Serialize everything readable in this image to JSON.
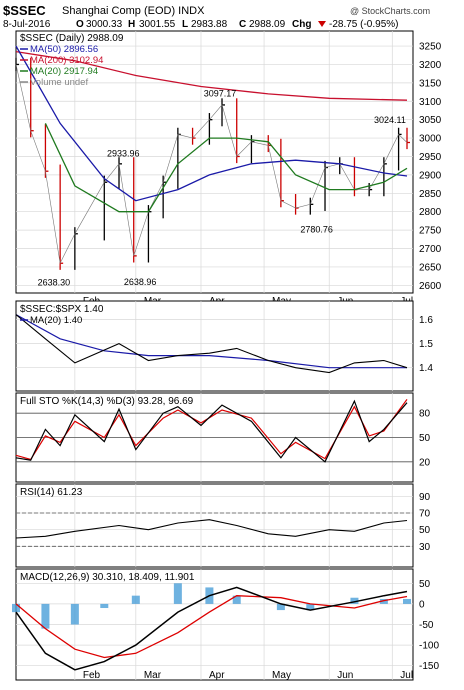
{
  "header": {
    "symbol": "$SSEC",
    "name": "Shanghai Comp (EOD) INDX",
    "watermark": "@ StockCharts.com",
    "date": "8-Jul-2016",
    "open_label": "O",
    "open": "3000.33",
    "high_label": "H",
    "high": "3001.55",
    "low_label": "L",
    "low": "2983.88",
    "close_label": "C",
    "close": "2988.09",
    "chg_label": "Chg",
    "chg": "-28.75 (-0.95%)",
    "chg_icon": "down-triangle-icon"
  },
  "colors": {
    "up_bar": "#000000",
    "down_bar": "#cc0000",
    "ma50": "#1a1aa8",
    "ma200": "#c8102e",
    "ma20": "#1f7a1f",
    "sto_k": "#000000",
    "sto_d": "#dd0000",
    "macd_line": "#000000",
    "signal_line": "#dd0000",
    "histogram": "#4a9fd8",
    "ratio_line": "#000000",
    "ratio_ma": "#1a1aa8",
    "grid": "#d8d8d8"
  },
  "chart_data": [
    {
      "type": "line",
      "title": "$SSEC (Daily) 2988.09",
      "legend": [
        {
          "name": "MA(50) 2896.56",
          "color": "#1a1aa8"
        },
        {
          "name": "MA(200) 3102.94",
          "color": "#c8102e"
        },
        {
          "name": "MA(20) 2917.94",
          "color": "#1f7a1f"
        },
        {
          "name": "Volume undef",
          "color": "#888888"
        }
      ],
      "legend_placement": "top-left",
      "x_ticks": [
        "Feb",
        "Mar",
        "Apr",
        "May",
        "Jun",
        "Jul"
      ],
      "y_ticks": [
        2600,
        2650,
        2700,
        2750,
        2800,
        2850,
        2900,
        2950,
        3000,
        3050,
        3100,
        3150,
        3200,
        3250
      ],
      "ylim": [
        2590,
        3280
      ],
      "annotations": [
        "2638.30",
        "2933.96",
        "2638.96",
        "3097.17",
        "2780.76",
        "3024.11"
      ],
      "grid": true,
      "series": [
        {
          "name": "price",
          "x": [
            "Jan 4",
            "Jan 11",
            "Jan 18",
            "Jan 25",
            "Feb 1",
            "Feb 15",
            "Feb 22",
            "Feb 29",
            "Mar 7",
            "Mar 14",
            "Mar 21",
            "Mar 28",
            "Apr 5",
            "Apr 11",
            "Apr 18",
            "Apr 25",
            "May 3",
            "May 9",
            "May 16",
            "May 23",
            "May 30",
            "Jun 6",
            "Jun 13",
            "Jun 20",
            "Jun 27",
            "Jul 4",
            "Jul 8"
          ],
          "values": [
            3200,
            3020,
            2910,
            2660,
            2740,
            2880,
            2930,
            2680,
            2800,
            2880,
            3010,
            3000,
            3050,
            3090,
            2950,
            2990,
            2980,
            2830,
            2810,
            2820,
            2920,
            2930,
            2860,
            2860,
            2930,
            3010,
            2988
          ]
        },
        {
          "name": "MA(200)",
          "x": [
            "Jan 4",
            "Feb 1",
            "Mar 1",
            "Apr 1",
            "May 3",
            "Jun 1",
            "Jul 8"
          ],
          "values": [
            3235,
            3210,
            3170,
            3140,
            3120,
            3108,
            3103
          ]
        },
        {
          "name": "MA(50)",
          "x": [
            "Jan 4",
            "Jan 25",
            "Feb 15",
            "Mar 1",
            "Mar 21",
            "Apr 5",
            "Apr 25",
            "May 16",
            "Jun 6",
            "Jun 27",
            "Jul 8"
          ],
          "values": [
            3250,
            3040,
            2890,
            2830,
            2860,
            2900,
            2930,
            2940,
            2930,
            2905,
            2897
          ]
        },
        {
          "name": "MA(20)",
          "x": [
            "Jan 18",
            "Feb 1",
            "Feb 22",
            "Mar 7",
            "Mar 21",
            "Apr 5",
            "Apr 18",
            "May 3",
            "May 16",
            "Jun 1",
            "Jun 13",
            "Jun 27",
            "Jul 8"
          ],
          "values": [
            3040,
            2870,
            2800,
            2800,
            2930,
            3000,
            3000,
            2990,
            2900,
            2860,
            2860,
            2880,
            2918
          ]
        }
      ]
    },
    {
      "type": "line",
      "title": "$SSEC:$SPX 1.40",
      "legend": [
        {
          "name": "MA(20) 1.40",
          "color": "#1a1aa8"
        }
      ],
      "y_ticks": [
        1.4,
        1.5,
        1.6
      ],
      "ylim": [
        1.32,
        1.66
      ],
      "series": [
        {
          "name": "ratio",
          "x": [
            "Jan 4",
            "Jan 18",
            "Feb 1",
            "Feb 22",
            "Mar 7",
            "Mar 21",
            "Apr 5",
            "Apr 18",
            "May 3",
            "May 16",
            "Jun 1",
            "Jun 13",
            "Jun 27",
            "Jul 8"
          ],
          "values": [
            1.62,
            1.52,
            1.42,
            1.5,
            1.43,
            1.45,
            1.46,
            1.48,
            1.43,
            1.4,
            1.38,
            1.42,
            1.43,
            1.4
          ]
        },
        {
          "name": "MA(20)",
          "x": [
            "Jan 4",
            "Jan 25",
            "Feb 15",
            "Mar 7",
            "Apr 5",
            "May 3",
            "Jun 1",
            "Jul 8"
          ],
          "values": [
            1.62,
            1.52,
            1.47,
            1.45,
            1.45,
            1.43,
            1.4,
            1.4
          ]
        }
      ]
    },
    {
      "type": "line",
      "title": "Full STO %K(14,3) %D(3) 93.28, 96.69",
      "y_ticks": [
        20,
        50,
        80
      ],
      "ylim": [
        0,
        100
      ],
      "reference_lines": [
        20,
        50,
        80
      ],
      "series": [
        {
          "name": "%K",
          "x": [
            "Jan 4",
            "Jan 11",
            "Jan 18",
            "Jan 25",
            "Feb 1",
            "Feb 15",
            "Feb 22",
            "Mar 1",
            "Mar 14",
            "Mar 21",
            "Apr 1",
            "Apr 11",
            "Apr 25",
            "May 9",
            "May 16",
            "May 30",
            "Jun 13",
            "Jun 20",
            "Jun 27",
            "Jul 8"
          ],
          "values": [
            25,
            22,
            60,
            40,
            78,
            45,
            85,
            35,
            80,
            88,
            65,
            90,
            70,
            25,
            50,
            20,
            95,
            45,
            60,
            93
          ]
        },
        {
          "name": "%D",
          "x": [
            "Jan 4",
            "Jan 11",
            "Jan 18",
            "Jan 25",
            "Feb 1",
            "Feb 15",
            "Feb 22",
            "Mar 1",
            "Mar 14",
            "Mar 21",
            "Apr 1",
            "Apr 11",
            "Apr 25",
            "May 9",
            "May 16",
            "May 30",
            "Jun 13",
            "Jun 20",
            "Jun 27",
            "Jul 8"
          ],
          "values": [
            28,
            23,
            52,
            44,
            70,
            50,
            78,
            40,
            74,
            84,
            68,
            84,
            74,
            30,
            44,
            24,
            88,
            52,
            58,
            97
          ]
        }
      ]
    },
    {
      "type": "line",
      "title": "RSI(14) 61.23",
      "y_ticks": [
        30,
        50,
        70,
        90
      ],
      "ylim": [
        10,
        100
      ],
      "reference_lines": [
        30,
        70
      ],
      "series": [
        {
          "name": "RSI",
          "x": [
            "Jan 4",
            "Jan 18",
            "Feb 1",
            "Feb 22",
            "Mar 7",
            "Mar 21",
            "Apr 5",
            "Apr 18",
            "May 3",
            "May 16",
            "Jun 1",
            "Jun 13",
            "Jun 27",
            "Jul 8"
          ],
          "values": [
            40,
            42,
            48,
            55,
            50,
            58,
            62,
            55,
            45,
            42,
            50,
            48,
            58,
            61
          ]
        }
      ]
    },
    {
      "type": "bar",
      "title": "MACD(12,26,9) 30.310, 18.409, 11.901",
      "y_ticks": [
        -150,
        -100,
        -50,
        0,
        50
      ],
      "ylim": [
        -175,
        75
      ],
      "series": [
        {
          "name": "MACD",
          "x": [
            "Jan 4",
            "Jan 18",
            "Feb 1",
            "Feb 15",
            "Mar 1",
            "Mar 21",
            "Apr 5",
            "Apr 18",
            "May 9",
            "May 23",
            "Jun 13",
            "Jun 27",
            "Jul 8"
          ],
          "values": [
            -20,
            -120,
            -160,
            -140,
            -100,
            -20,
            20,
            40,
            0,
            -15,
            5,
            20,
            30
          ]
        },
        {
          "name": "Signal",
          "x": [
            "Jan 4",
            "Jan 18",
            "Feb 1",
            "Feb 15",
            "Mar 1",
            "Mar 21",
            "Apr 5",
            "Apr 18",
            "May 9",
            "May 23",
            "Jun 13",
            "Jun 27",
            "Jul 8"
          ],
          "values": [
            0,
            -60,
            -110,
            -130,
            -120,
            -70,
            -20,
            20,
            15,
            0,
            -10,
            8,
            18
          ]
        },
        {
          "name": "Histogram",
          "x": [
            "Jan 4",
            "Jan 18",
            "Feb 1",
            "Feb 15",
            "Mar 1",
            "Mar 21",
            "Apr 5",
            "Apr 18",
            "May 9",
            "May 23",
            "Jun 13",
            "Jun 27",
            "Jul 8"
          ],
          "values": [
            -20,
            -60,
            -50,
            -10,
            20,
            50,
            40,
            20,
            -15,
            -15,
            15,
            12,
            12
          ]
        }
      ]
    }
  ]
}
